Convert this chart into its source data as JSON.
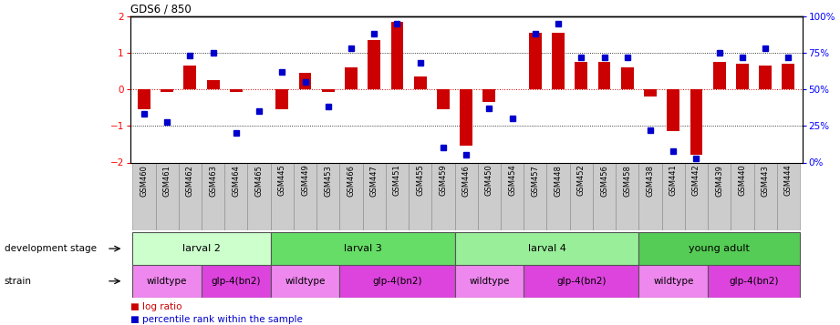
{
  "title": "GDS6 / 850",
  "samples": [
    "GSM460",
    "GSM461",
    "GSM462",
    "GSM463",
    "GSM464",
    "GSM465",
    "GSM445",
    "GSM449",
    "GSM453",
    "GSM466",
    "GSM447",
    "GSM451",
    "GSM455",
    "GSM459",
    "GSM446",
    "GSM450",
    "GSM454",
    "GSM457",
    "GSM448",
    "GSM452",
    "GSM456",
    "GSM458",
    "GSM438",
    "GSM441",
    "GSM442",
    "GSM439",
    "GSM440",
    "GSM443",
    "GSM444"
  ],
  "log_ratio": [
    -0.55,
    -0.07,
    0.65,
    0.25,
    -0.07,
    0.0,
    -0.55,
    0.45,
    -0.07,
    0.6,
    1.35,
    1.85,
    0.35,
    -0.55,
    -1.55,
    -0.35,
    0.0,
    1.55,
    1.55,
    0.75,
    0.75,
    0.6,
    -0.2,
    -1.15,
    -1.8,
    0.75,
    0.7,
    0.65,
    0.7
  ],
  "percentile": [
    33,
    28,
    73,
    75,
    20,
    35,
    62,
    55,
    38,
    78,
    88,
    95,
    68,
    10,
    5,
    37,
    30,
    88,
    95,
    72,
    72,
    72,
    22,
    8,
    3,
    75,
    72,
    78,
    72
  ],
  "dev_stages": [
    {
      "label": "larval 2",
      "start": 0,
      "end": 6,
      "color": "#ccffcc"
    },
    {
      "label": "larval 3",
      "start": 6,
      "end": 14,
      "color": "#66dd66"
    },
    {
      "label": "larval 4",
      "start": 14,
      "end": 22,
      "color": "#99ee99"
    },
    {
      "label": "young adult",
      "start": 22,
      "end": 29,
      "color": "#55cc55"
    }
  ],
  "strains": [
    {
      "label": "wildtype",
      "start": 0,
      "end": 3,
      "color": "#ee88ee"
    },
    {
      "label": "glp-4(bn2)",
      "start": 3,
      "end": 6,
      "color": "#dd44dd"
    },
    {
      "label": "wildtype",
      "start": 6,
      "end": 9,
      "color": "#ee88ee"
    },
    {
      "label": "glp-4(bn2)",
      "start": 9,
      "end": 14,
      "color": "#dd44dd"
    },
    {
      "label": "wildtype",
      "start": 14,
      "end": 17,
      "color": "#ee88ee"
    },
    {
      "label": "glp-4(bn2)",
      "start": 17,
      "end": 22,
      "color": "#dd44dd"
    },
    {
      "label": "wildtype",
      "start": 22,
      "end": 25,
      "color": "#ee88ee"
    },
    {
      "label": "glp-4(bn2)",
      "start": 25,
      "end": 29,
      "color": "#dd44dd"
    }
  ],
  "bar_color": "#cc0000",
  "dot_color": "#0000cc",
  "ylim": [
    -2.0,
    2.0
  ],
  "y2lim": [
    0,
    100
  ],
  "yticks_left": [
    -2,
    -1,
    0,
    1,
    2
  ],
  "yticks_right": [
    0,
    25,
    50,
    75,
    100
  ],
  "ytick_labels_right": [
    "0%",
    "25%",
    "50%",
    "75%",
    "100%"
  ],
  "cell_bg": "#cccccc",
  "dev_label": "development stage",
  "strain_label": "strain",
  "legend1": "log ratio",
  "legend2": "percentile rank within the sample"
}
